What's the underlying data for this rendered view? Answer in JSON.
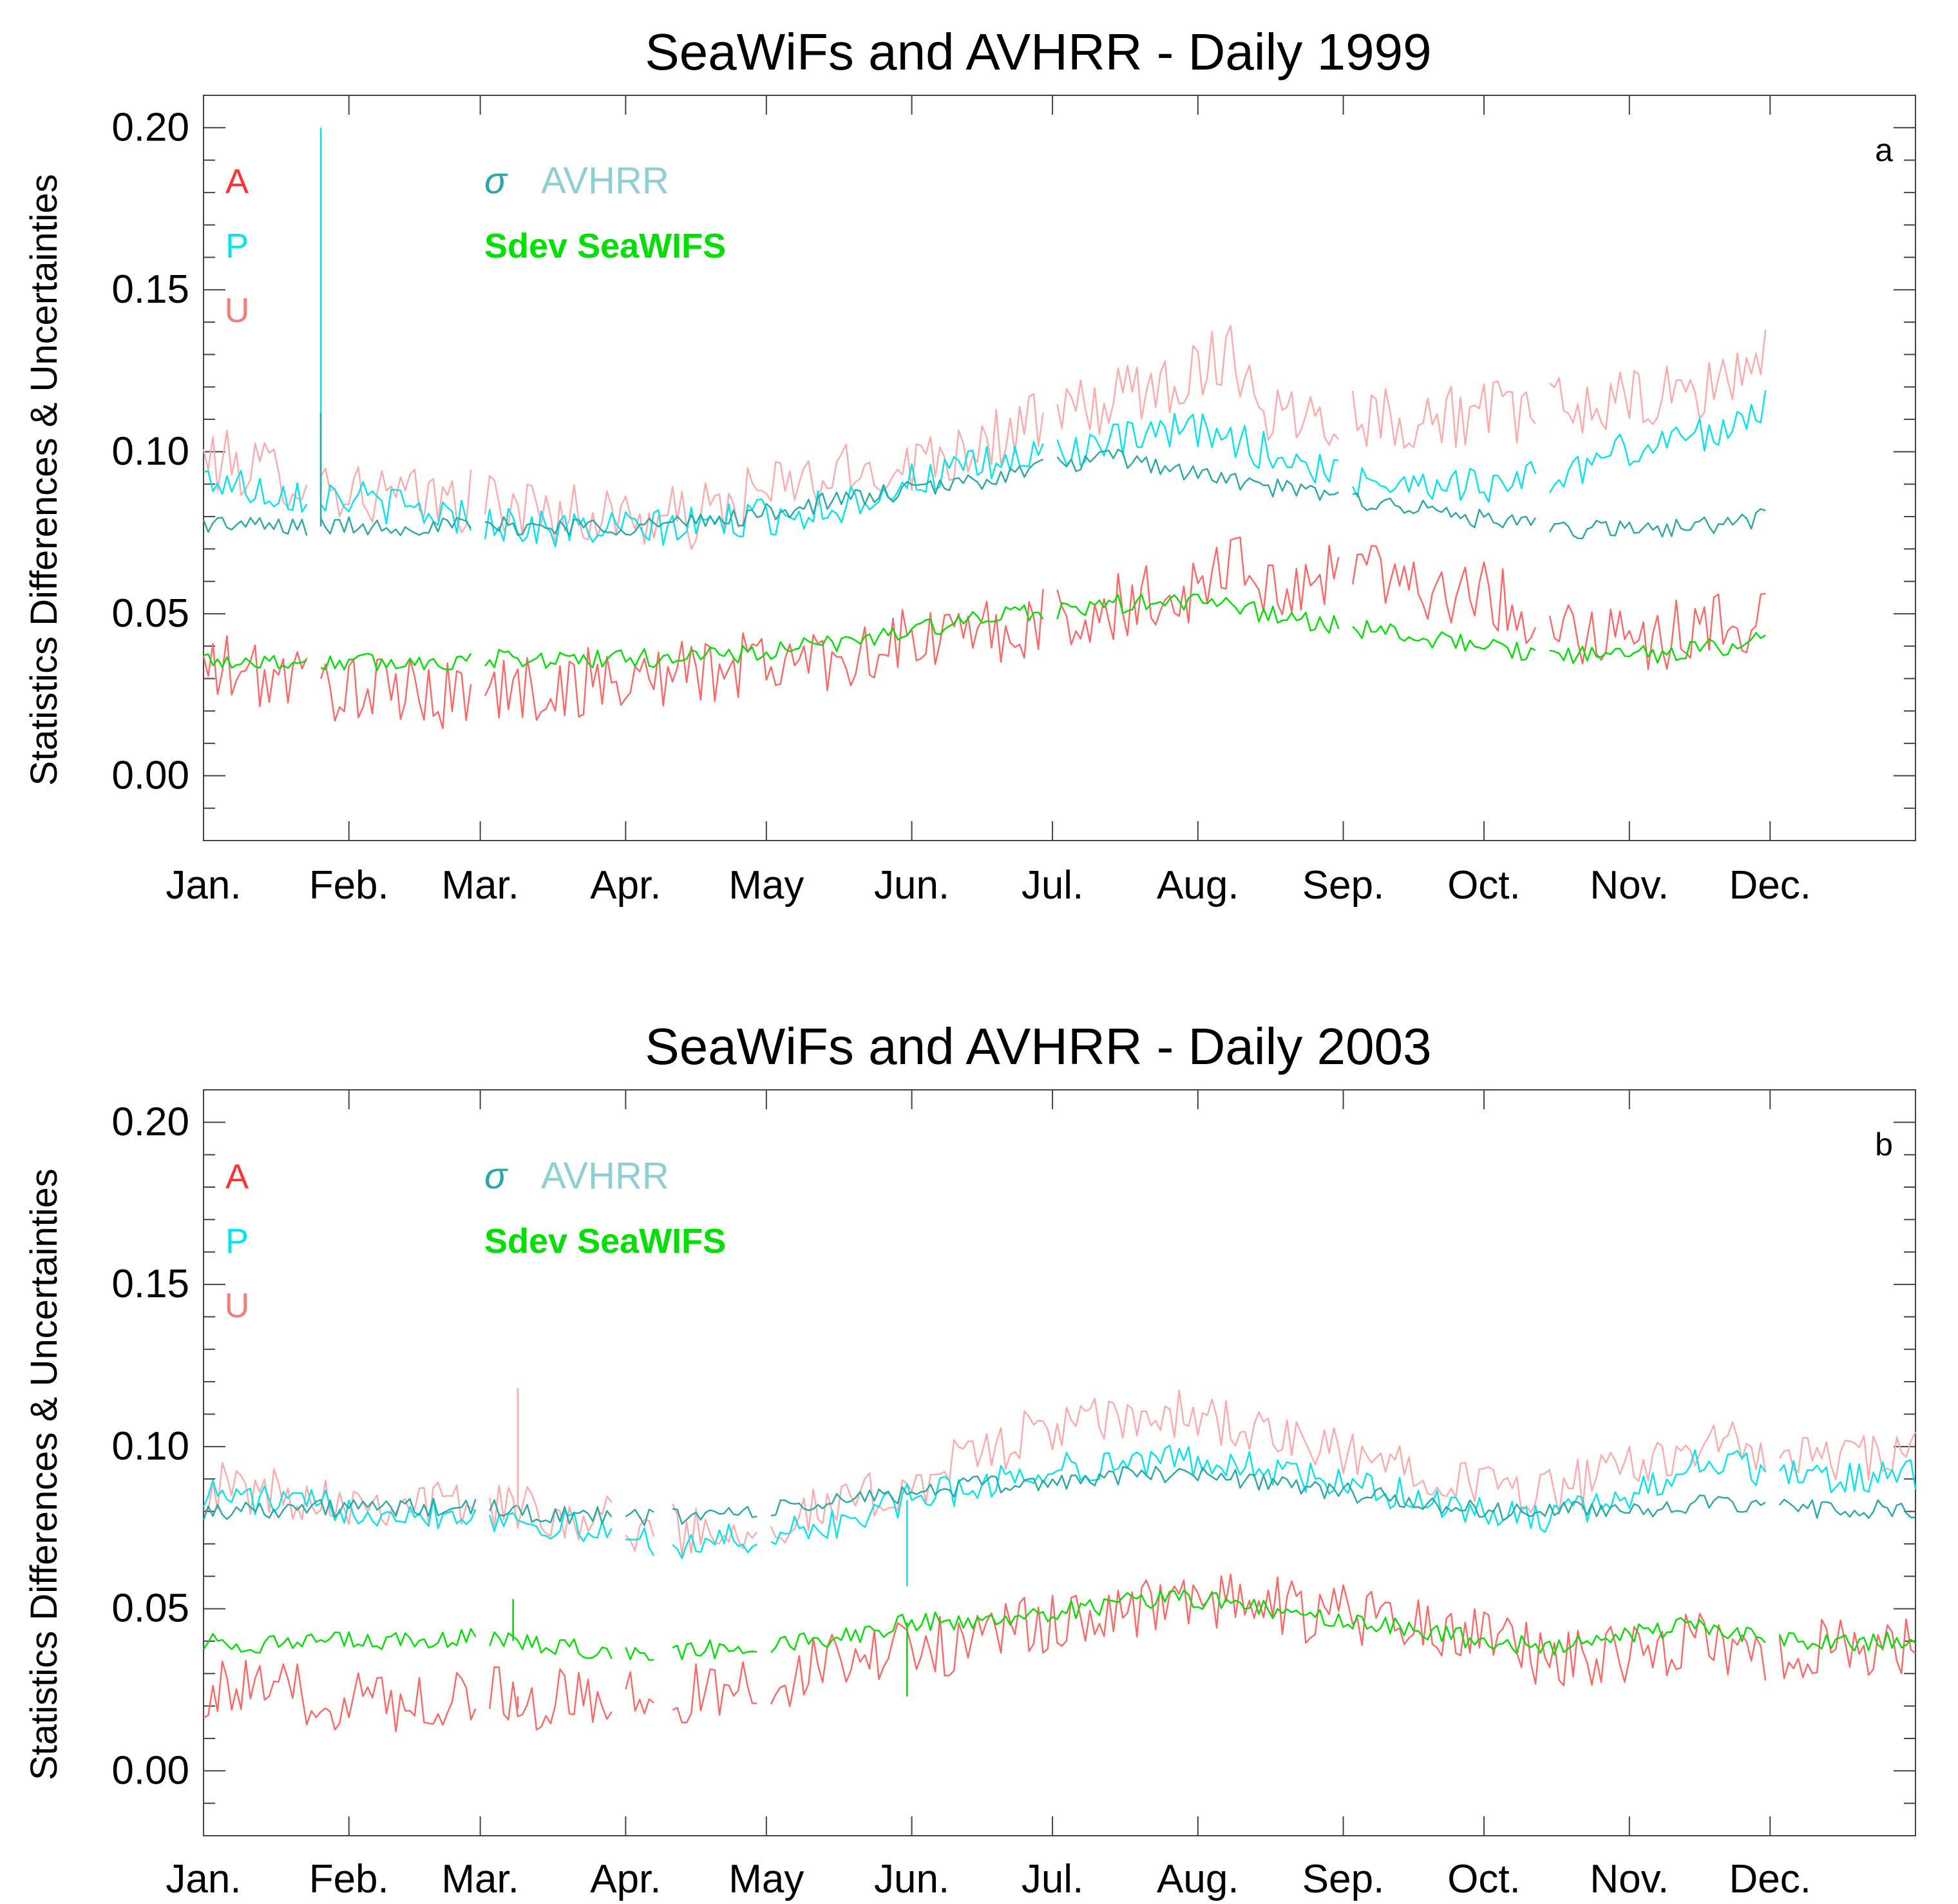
{
  "chart_data": [
    {
      "type": "line",
      "panel_label": "a",
      "title": "SeaWiFs and AVHRR - Daily 1999",
      "ylabel": "Statistics Differences & Uncertainties",
      "xlabel": "",
      "x_unit": "day of year",
      "xlim": [
        1,
        366
      ],
      "ylim": [
        -0.02,
        0.21
      ],
      "yticks": [
        0.0,
        0.05,
        0.1,
        0.15,
        0.2
      ],
      "ytick_labels": [
        "0.00",
        "0.05",
        "0.10",
        "0.15",
        "0.20"
      ],
      "month_ticks": [
        1,
        32,
        60,
        91,
        121,
        152,
        182,
        213,
        244,
        274,
        305,
        335
      ],
      "month_labels": [
        "Jan.",
        "Feb.",
        "Mar.",
        "Apr.",
        "May",
        "Jun.",
        "Jul.",
        "Aug.",
        "Sep.",
        "Oct.",
        "Nov.",
        "Dec."
      ],
      "legend": [
        {
          "label": "A",
          "color": "#ff3333"
        },
        {
          "label": "P",
          "color": "#00e5ee"
        },
        {
          "label": "U",
          "color": "#f08080"
        },
        {
          "symbol": "σ",
          "label": "AVHRR",
          "color": "#2aa7a7",
          "label_color": "#8fcfd4"
        },
        {
          "label": "Sdev SeaWIFS",
          "color": "#00e000"
        }
      ],
      "series": [
        {
          "name": "U",
          "color": "#ffaaaa",
          "noise": 0.01,
          "x": [
            1,
            15,
            32,
            46,
            60,
            75,
            91,
            105,
            121,
            136,
            152,
            166,
            182,
            197,
            213,
            220,
            228,
            244,
            258,
            274,
            289,
            305,
            320,
            335
          ],
          "y": [
            0.098,
            0.094,
            0.088,
            0.085,
            0.085,
            0.081,
            0.08,
            0.079,
            0.088,
            0.092,
            0.097,
            0.103,
            0.11,
            0.117,
            0.125,
            0.132,
            0.112,
            0.112,
            0.11,
            0.112,
            0.113,
            0.115,
            0.118,
            0.13
          ]
        },
        {
          "name": "P",
          "color": "#00e5ee",
          "noise": 0.006,
          "x": [
            1,
            15,
            32,
            46,
            60,
            75,
            91,
            105,
            121,
            136,
            152,
            166,
            182,
            197,
            213,
            228,
            244,
            258,
            274,
            289,
            305,
            320,
            335
          ],
          "y": [
            0.092,
            0.088,
            0.086,
            0.082,
            0.079,
            0.076,
            0.076,
            0.077,
            0.08,
            0.083,
            0.091,
            0.095,
            0.1,
            0.103,
            0.107,
            0.1,
            0.092,
            0.091,
            0.09,
            0.092,
            0.101,
            0.105,
            0.115
          ]
        },
        {
          "name": "σ AVHRR",
          "color": "#2aa7a7",
          "noise": 0.003,
          "x": [
            1,
            15,
            32,
            46,
            60,
            75,
            91,
            105,
            121,
            136,
            152,
            166,
            182,
            197,
            213,
            228,
            244,
            258,
            274,
            289,
            305,
            320,
            335
          ],
          "y": [
            0.078,
            0.077,
            0.077,
            0.077,
            0.077,
            0.077,
            0.077,
            0.078,
            0.081,
            0.085,
            0.088,
            0.091,
            0.096,
            0.098,
            0.093,
            0.089,
            0.086,
            0.083,
            0.079,
            0.076,
            0.076,
            0.077,
            0.08
          ]
        },
        {
          "name": "A",
          "color": "#ff6666",
          "noise": 0.011,
          "x": [
            1,
            15,
            32,
            46,
            60,
            75,
            91,
            105,
            121,
            136,
            152,
            166,
            182,
            197,
            213,
            222,
            230,
            244,
            258,
            274,
            289,
            305,
            320,
            335
          ],
          "y": [
            0.033,
            0.031,
            0.027,
            0.025,
            0.026,
            0.027,
            0.03,
            0.032,
            0.035,
            0.037,
            0.041,
            0.044,
            0.047,
            0.052,
            0.058,
            0.07,
            0.052,
            0.068,
            0.06,
            0.055,
            0.048,
            0.041,
            0.045,
            0.05
          ]
        },
        {
          "name": "Sdev SeaWIFS",
          "color": "#00e000",
          "noise": 0.003,
          "x": [
            1,
            15,
            32,
            46,
            60,
            75,
            91,
            105,
            121,
            136,
            152,
            166,
            182,
            197,
            213,
            228,
            244,
            258,
            274,
            289,
            305,
            320,
            335
          ],
          "y": [
            0.036,
            0.035,
            0.035,
            0.035,
            0.036,
            0.036,
            0.036,
            0.037,
            0.038,
            0.041,
            0.045,
            0.048,
            0.051,
            0.053,
            0.054,
            0.05,
            0.046,
            0.043,
            0.04,
            0.037,
            0.037,
            0.039,
            0.042
          ]
        }
      ],
      "spikes": [
        {
          "series": "P",
          "x": 26,
          "y": 0.2
        },
        {
          "series": "σ AVHRR",
          "x": 26,
          "y": 0.112
        }
      ],
      "gaps": [
        [
          24,
          25
        ],
        [
          59,
          60
        ],
        [
          181,
          182
        ],
        [
          244,
          245
        ],
        [
          286,
          287
        ],
        [
          335,
          336
        ],
        [
          336,
          366
        ]
      ]
    },
    {
      "type": "line",
      "panel_label": "b",
      "title": "SeaWiFs and AVHRR - Daily 2003",
      "ylabel": "Statistics Differences & Uncertainties",
      "xlabel": "",
      "x_unit": "day of year",
      "xlim": [
        1,
        366
      ],
      "ylim": [
        -0.02,
        0.21
      ],
      "yticks": [
        0.0,
        0.05,
        0.1,
        0.15,
        0.2
      ],
      "ytick_labels": [
        "0.00",
        "0.05",
        "0.10",
        "0.15",
        "0.20"
      ],
      "month_ticks": [
        1,
        32,
        60,
        91,
        121,
        152,
        182,
        213,
        244,
        274,
        305,
        335
      ],
      "month_labels": [
        "Jan.",
        "Feb.",
        "Mar.",
        "Apr.",
        "May",
        "Jun.",
        "Jul.",
        "Aug.",
        "Sep.",
        "Oct.",
        "Nov.",
        "Dec."
      ],
      "legend": [
        {
          "label": "A",
          "color": "#ff3333"
        },
        {
          "label": "P",
          "color": "#00e5ee"
        },
        {
          "label": "U",
          "color": "#f08080"
        },
        {
          "symbol": "σ",
          "label": "AVHRR",
          "color": "#2aa7a7",
          "label_color": "#8fcfd4"
        },
        {
          "label": "Sdev SeaWIFS",
          "color": "#00e000"
        }
      ],
      "series": [
        {
          "name": "U",
          "color": "#ffaaaa",
          "noise": 0.008,
          "x": [
            1,
            15,
            32,
            46,
            60,
            75,
            91,
            105,
            121,
            136,
            152,
            166,
            182,
            197,
            213,
            228,
            244,
            258,
            274,
            289,
            305,
            320,
            335,
            350,
            366
          ],
          "y": [
            0.088,
            0.086,
            0.084,
            0.083,
            0.082,
            0.08,
            0.076,
            0.074,
            0.076,
            0.081,
            0.088,
            0.098,
            0.106,
            0.108,
            0.11,
            0.103,
            0.097,
            0.095,
            0.088,
            0.086,
            0.093,
            0.102,
            0.097,
            0.096,
            0.097
          ]
        },
        {
          "name": "P",
          "color": "#00e5ee",
          "noise": 0.005,
          "x": [
            1,
            15,
            32,
            46,
            60,
            75,
            91,
            105,
            121,
            136,
            152,
            166,
            182,
            197,
            213,
            228,
            244,
            258,
            274,
            289,
            305,
            320,
            335,
            350,
            366
          ],
          "y": [
            0.086,
            0.083,
            0.081,
            0.08,
            0.079,
            0.076,
            0.072,
            0.07,
            0.072,
            0.076,
            0.084,
            0.088,
            0.093,
            0.095,
            0.096,
            0.093,
            0.088,
            0.085,
            0.079,
            0.078,
            0.085,
            0.096,
            0.092,
            0.09,
            0.091
          ]
        },
        {
          "name": "σ AVHRR",
          "color": "#2aa7a7",
          "noise": 0.003,
          "x": [
            1,
            15,
            32,
            46,
            60,
            75,
            91,
            105,
            121,
            136,
            152,
            166,
            182,
            197,
            213,
            228,
            244,
            258,
            274,
            289,
            305,
            320,
            335,
            350,
            366
          ],
          "y": [
            0.08,
            0.081,
            0.081,
            0.081,
            0.081,
            0.079,
            0.078,
            0.079,
            0.08,
            0.083,
            0.086,
            0.088,
            0.089,
            0.091,
            0.092,
            0.089,
            0.086,
            0.083,
            0.08,
            0.08,
            0.081,
            0.082,
            0.081,
            0.081,
            0.08
          ]
        },
        {
          "name": "A",
          "color": "#ff6666",
          "noise": 0.01,
          "x": [
            1,
            15,
            32,
            46,
            60,
            75,
            91,
            105,
            121,
            136,
            152,
            166,
            182,
            197,
            213,
            228,
            244,
            258,
            274,
            289,
            305,
            320,
            335,
            350,
            366
          ],
          "y": [
            0.025,
            0.024,
            0.022,
            0.022,
            0.024,
            0.022,
            0.021,
            0.024,
            0.027,
            0.034,
            0.037,
            0.041,
            0.045,
            0.05,
            0.053,
            0.05,
            0.048,
            0.046,
            0.04,
            0.035,
            0.036,
            0.041,
            0.036,
            0.038,
            0.04
          ]
        },
        {
          "name": "Sdev SeaWIFS",
          "color": "#00e000",
          "noise": 0.003,
          "x": [
            1,
            15,
            32,
            46,
            60,
            75,
            91,
            105,
            121,
            136,
            152,
            166,
            182,
            197,
            213,
            228,
            244,
            258,
            274,
            289,
            305,
            320,
            335,
            350,
            366
          ],
          "y": [
            0.04,
            0.039,
            0.04,
            0.04,
            0.041,
            0.039,
            0.036,
            0.037,
            0.039,
            0.041,
            0.046,
            0.046,
            0.049,
            0.052,
            0.053,
            0.05,
            0.046,
            0.044,
            0.04,
            0.038,
            0.042,
            0.045,
            0.04,
            0.04,
            0.04
          ]
        }
      ],
      "spikes": [
        {
          "series": "U",
          "x": 68,
          "y": 0.118
        },
        {
          "series": "A",
          "x": 68,
          "y": 0.019
        },
        {
          "series": "Sdev SeaWIFS",
          "x": 67,
          "y": 0.053
        },
        {
          "series": "P",
          "x": 151,
          "y": 0.057
        },
        {
          "series": "Sdev SeaWIFS",
          "x": 151,
          "y": 0.023
        }
      ],
      "gaps": [
        [
          60,
          61
        ],
        [
          89,
          90
        ],
        [
          98,
          100
        ],
        [
          120,
          121
        ],
        [
          335,
          336
        ]
      ]
    }
  ]
}
